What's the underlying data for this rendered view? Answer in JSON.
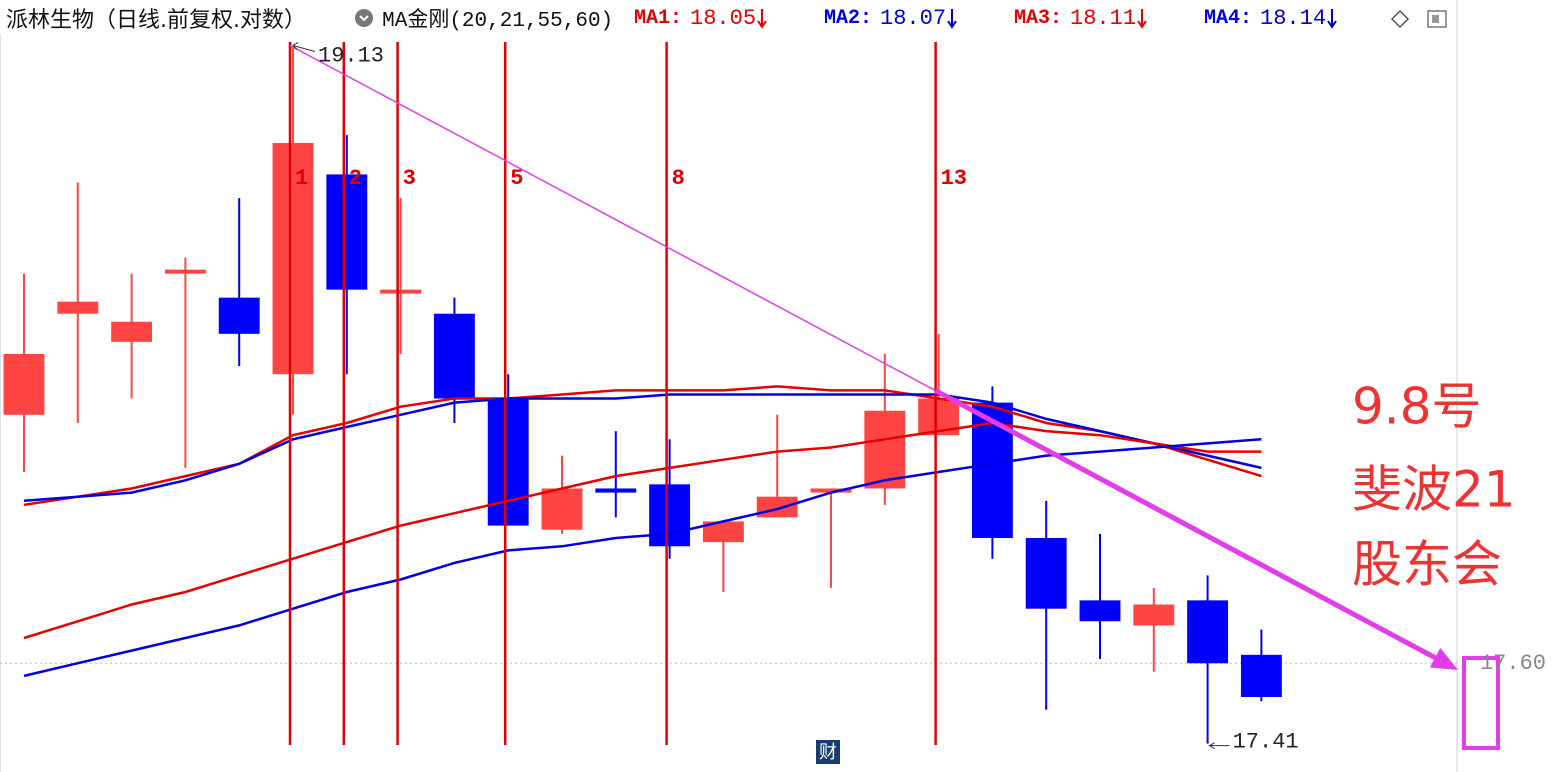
{
  "chart_data": {
    "type": "candlestick",
    "title": "派林生物（日线.前复权.对数）",
    "indicator": "MA金刚(20,21,55,60)",
    "categories": [
      null,
      null,
      null,
      null,
      null,
      null,
      null,
      null,
      null,
      null,
      null,
      null,
      null,
      null,
      null,
      null,
      null,
      null,
      null,
      null,
      null,
      null,
      null,
      null
    ],
    "open": [
      18.2,
      18.45,
      18.38,
      18.55,
      18.49,
      18.3,
      18.8,
      18.5,
      18.45,
      18.24,
      17.92,
      18.02,
      18.03,
      17.89,
      17.95,
      18.01,
      18.02,
      18.15,
      18.23,
      17.9,
      17.75,
      17.69,
      17.75,
      17.62
    ],
    "high": [
      18.55,
      18.78,
      18.55,
      18.59,
      18.74,
      19.13,
      18.9,
      18.74,
      18.49,
      18.3,
      18.1,
      18.16,
      18.14,
      17.94,
      18.2,
      18.02,
      18.35,
      18.4,
      18.27,
      17.99,
      17.91,
      17.78,
      17.81,
      17.68
    ],
    "low": [
      18.06,
      18.18,
      18.24,
      18.07,
      18.32,
      18.2,
      18.3,
      18.35,
      18.18,
      17.93,
      17.91,
      17.95,
      17.85,
      17.77,
      17.95,
      17.78,
      17.98,
      18.15,
      17.85,
      17.49,
      17.61,
      17.58,
      17.41,
      17.51
    ],
    "close": [
      18.35,
      18.48,
      18.43,
      18.56,
      18.4,
      18.88,
      18.51,
      18.51,
      18.24,
      17.93,
      18.02,
      18.01,
      17.88,
      17.94,
      18.0,
      18.02,
      18.21,
      18.24,
      17.9,
      17.73,
      17.7,
      17.74,
      17.6,
      17.52
    ],
    "up_color": "#ff4444",
    "down_color": "#0000ff",
    "series": [
      {
        "name": "MA1:",
        "color": "#e80000",
        "values": [
          17.98,
          18.0,
          18.02,
          18.05,
          18.08,
          18.15,
          18.18,
          18.22,
          18.24,
          18.24,
          18.25,
          18.26,
          18.26,
          18.26,
          18.27,
          18.26,
          18.26,
          18.24,
          18.22,
          18.18,
          18.16,
          18.13,
          18.09,
          18.05
        ]
      },
      {
        "name": "MA2:",
        "color": "#0000e0",
        "values": [
          17.99,
          18.0,
          18.01,
          18.04,
          18.08,
          18.14,
          18.17,
          18.2,
          18.23,
          18.24,
          18.24,
          18.24,
          18.25,
          18.25,
          18.25,
          18.25,
          18.25,
          18.25,
          18.23,
          18.19,
          18.16,
          18.13,
          18.1,
          18.07
        ]
      },
      {
        "name": "MA3:",
        "color": "#e80000",
        "values": [
          17.66,
          17.7,
          17.74,
          17.77,
          17.81,
          17.85,
          17.89,
          17.93,
          17.96,
          17.99,
          18.02,
          18.05,
          18.07,
          18.09,
          18.11,
          18.12,
          18.14,
          18.16,
          18.18,
          18.16,
          18.15,
          18.13,
          18.11,
          18.11
        ]
      },
      {
        "name": "MA4:",
        "color": "#0000e0",
        "values": [
          17.57,
          17.6,
          17.63,
          17.66,
          17.69,
          17.73,
          17.77,
          17.8,
          17.84,
          17.87,
          17.88,
          17.9,
          17.91,
          17.94,
          17.97,
          18.01,
          18.04,
          18.06,
          18.08,
          18.1,
          18.11,
          18.12,
          18.13,
          18.14
        ]
      }
    ],
    "ylim": [
      17.36,
      19.17
    ],
    "log_scale": true,
    "yticks": [
      {
        "value": 17.6,
        "label": "17.60"
      }
    ],
    "grid": true,
    "fib_labels": [
      1,
      2,
      3,
      5,
      8,
      13
    ],
    "fib_color": "#e00000",
    "trend_color": "#e23de8",
    "annotation": [
      "9.8号",
      "斐波21",
      "股东会"
    ],
    "icon_text": "财"
  }
}
